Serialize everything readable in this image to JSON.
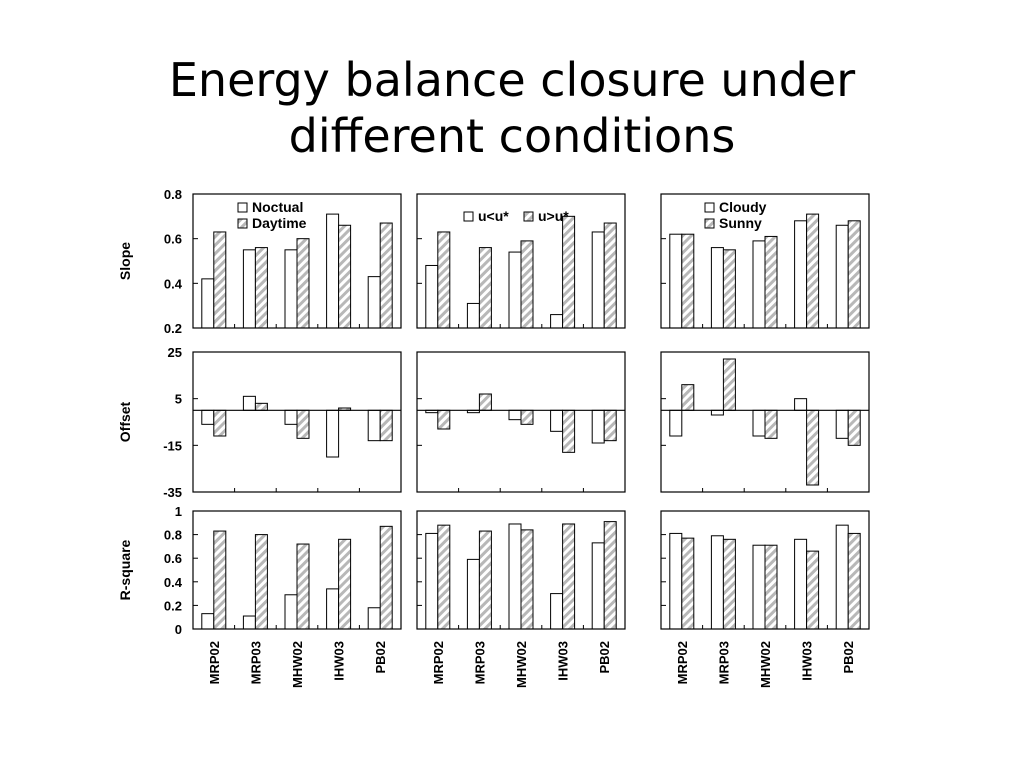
{
  "title_lines": [
    "Energy balance closure under",
    "different conditions"
  ],
  "chart_data": {
    "type": "bar",
    "categories": [
      "MRP02",
      "MRP03",
      "MHW02",
      "IHW03",
      "PB02"
    ],
    "rows": [
      {
        "ylabel": "Slope",
        "ylim": [
          0.2,
          0.8
        ],
        "ticks": [
          "0.8",
          "0.6",
          "0.4",
          "0.2"
        ],
        "tick_values": [
          0.8,
          0.6,
          0.4,
          0.2
        ]
      },
      {
        "ylabel": "Offset",
        "ylim": [
          -35,
          25
        ],
        "ticks": [
          "25",
          "5",
          "-15",
          "-35"
        ],
        "tick_values": [
          25,
          5,
          -15,
          -35
        ]
      },
      {
        "ylabel": "R-square",
        "ylim": [
          0,
          1
        ],
        "ticks": [
          "1",
          "0.8",
          "0.6",
          "0.4",
          "0.2",
          "0"
        ],
        "tick_values": [
          1,
          0.8,
          0.6,
          0.4,
          0.2,
          0
        ]
      }
    ],
    "groups": [
      {
        "series": [
          {
            "name": "Noctual",
            "slope": [
              0.42,
              0.55,
              0.55,
              0.71,
              0.43
            ],
            "offset": [
              -6,
              6,
              -6,
              -20,
              -13
            ],
            "rsquare": [
              0.13,
              0.11,
              0.29,
              0.34,
              0.18
            ]
          },
          {
            "name": "Daytime",
            "slope": [
              0.63,
              0.56,
              0.6,
              0.66,
              0.67
            ],
            "offset": [
              -11,
              3,
              -12,
              1,
              -13
            ],
            "rsquare": [
              0.83,
              0.8,
              0.72,
              0.76,
              0.87
            ]
          }
        ]
      },
      {
        "series": [
          {
            "name": "u<u*",
            "slope": [
              0.48,
              0.31,
              0.54,
              0.26,
              0.63
            ],
            "offset": [
              -1,
              -1,
              -4,
              -9,
              -14
            ],
            "rsquare": [
              0.81,
              0.59,
              0.89,
              0.3,
              0.73
            ]
          },
          {
            "name": "u>u*",
            "slope": [
              0.63,
              0.56,
              0.59,
              0.7,
              0.67
            ],
            "offset": [
              -8,
              7,
              -6,
              -18,
              -13
            ],
            "rsquare": [
              0.88,
              0.83,
              0.84,
              0.89,
              0.91
            ]
          }
        ]
      },
      {
        "series": [
          {
            "name": "Cloudy",
            "slope": [
              0.62,
              0.56,
              0.59,
              0.68,
              0.66
            ],
            "offset": [
              -11,
              -2,
              -11,
              5,
              -12
            ],
            "rsquare": [
              0.81,
              0.79,
              0.71,
              0.76,
              0.88
            ]
          },
          {
            "name": "Sunny",
            "slope": [
              0.62,
              0.55,
              0.61,
              0.71,
              0.68
            ],
            "offset": [
              11,
              22,
              -12,
              -32,
              -15
            ],
            "rsquare": [
              0.77,
              0.76,
              0.71,
              0.66,
              0.81
            ]
          }
        ]
      }
    ],
    "colors": {
      "series1": "#ffffff",
      "series2_stripe": "#b8b8b8",
      "stroke": "#000000"
    }
  }
}
